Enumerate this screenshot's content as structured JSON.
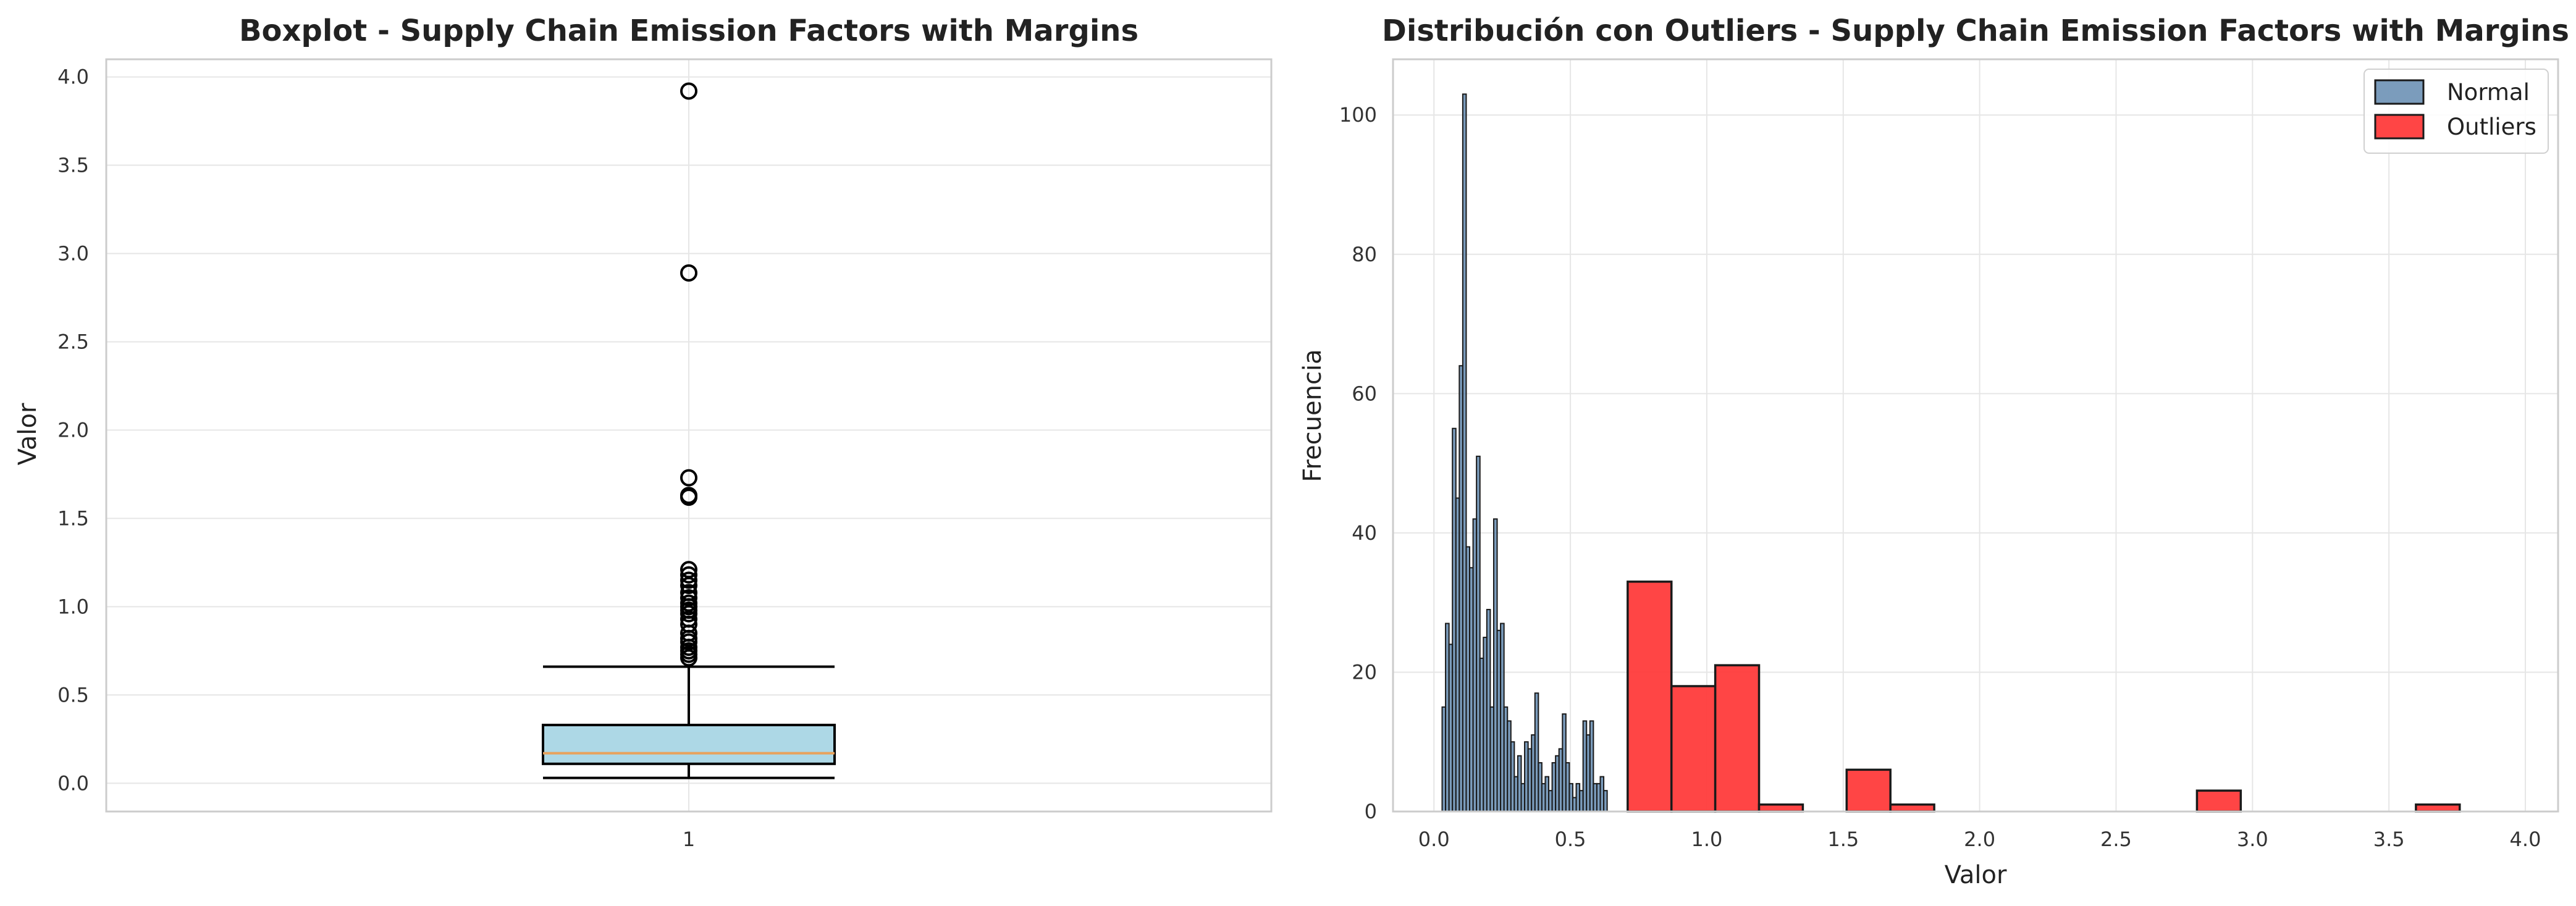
{
  "chart_data": [
    {
      "type": "boxplot",
      "title": "Boxplot - Supply Chain Emission Factors with Margins",
      "xlabel": "",
      "ylabel": "Valor",
      "xticks": [
        "1"
      ],
      "ylim": [
        -0.16,
        4.1
      ],
      "yticks": [
        0.0,
        0.5,
        1.0,
        1.5,
        2.0,
        2.5,
        3.0,
        3.5,
        4.0
      ],
      "ytick_labels": [
        "0.0",
        "0.5",
        "1.0",
        "1.5",
        "2.0",
        "2.5",
        "3.0",
        "3.5",
        "4.0"
      ],
      "grid": true,
      "box": {
        "whisker_low": 0.03,
        "q1": 0.11,
        "median": 0.17,
        "q3": 0.33,
        "whisker_high": 0.66,
        "outliers": [
          0.71,
          0.73,
          0.75,
          0.77,
          0.8,
          0.82,
          0.85,
          0.9,
          0.93,
          0.96,
          0.98,
          1.0,
          1.02,
          1.05,
          1.08,
          1.12,
          1.15,
          1.18,
          1.21,
          1.62,
          1.63,
          1.73,
          2.89,
          3.92
        ]
      },
      "colors": {
        "box_fill": "#add8e6",
        "median": "#e8a25c",
        "whisker": "#000000",
        "flier": "#000000"
      }
    },
    {
      "type": "histogram",
      "title": "Distribución con Outliers - Supply Chain Emission Factors with Margins",
      "xlabel": "Valor",
      "ylabel": "Frecuencia",
      "xlim": [
        -0.15,
        4.12
      ],
      "ylim": [
        0,
        108
      ],
      "xticks": [
        0.0,
        0.5,
        1.0,
        1.5,
        2.0,
        2.5,
        3.0,
        3.5,
        4.0
      ],
      "xtick_labels": [
        "0.0",
        "0.5",
        "1.0",
        "1.5",
        "2.0",
        "2.5",
        "3.0",
        "3.5",
        "4.0"
      ],
      "yticks": [
        0,
        20,
        40,
        60,
        80,
        100
      ],
      "ytick_labels": [
        "0",
        "20",
        "40",
        "60",
        "80",
        "100"
      ],
      "grid": true,
      "legend_position": "top-right",
      "series": [
        {
          "name": "Normal",
          "color": "#4f7ba6",
          "bin_start": 0.03,
          "bin_width": 0.0126,
          "values": [
            15,
            27,
            24,
            55,
            45,
            64,
            103,
            38,
            35,
            42,
            51,
            22,
            25,
            29,
            15,
            42,
            26,
            27,
            15,
            13,
            10,
            5,
            8,
            4,
            10,
            9,
            11,
            17,
            7,
            4,
            5,
            3,
            7,
            8,
            9,
            14,
            7,
            4,
            2,
            4,
            3,
            13,
            11,
            13,
            4,
            4,
            5,
            3
          ]
        },
        {
          "name": "Outliers",
          "color": "#ff3b3b",
          "bin_start": 0.71,
          "bin_width": 0.1605,
          "values": [
            33,
            18,
            21,
            1,
            0,
            6,
            1,
            0,
            0,
            0,
            0,
            0,
            0,
            3,
            0,
            0,
            0,
            0,
            1
          ]
        }
      ]
    }
  ]
}
